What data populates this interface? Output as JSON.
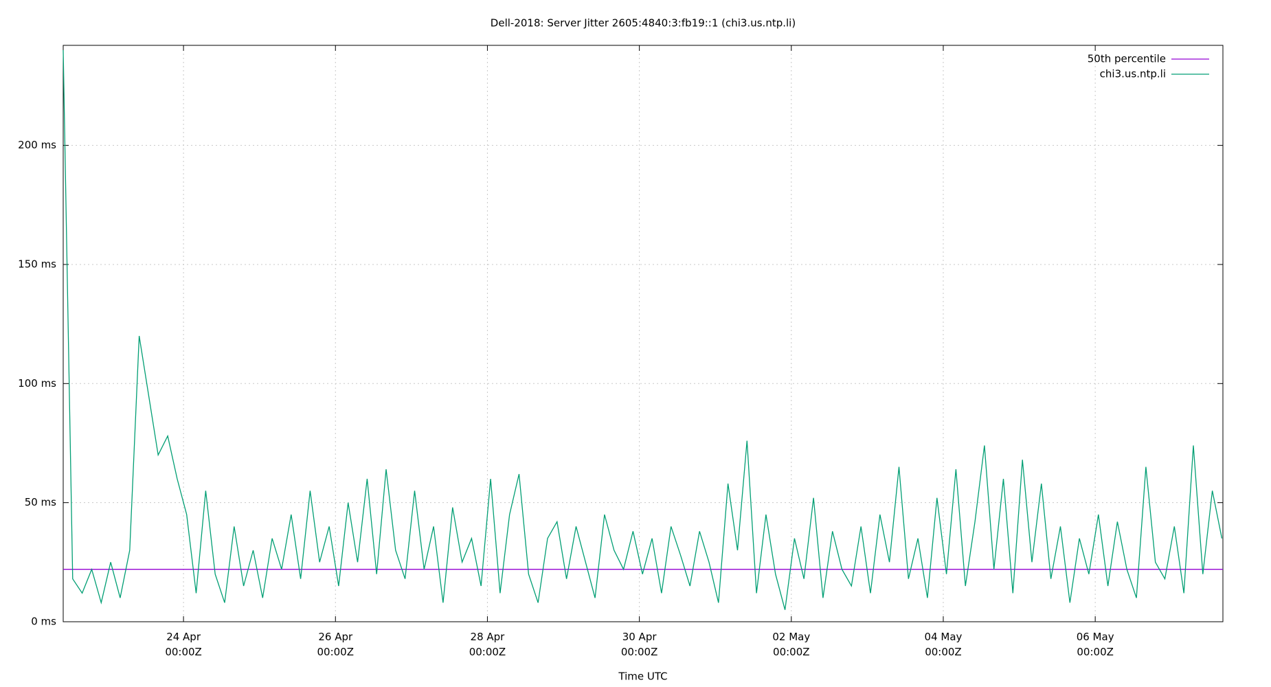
{
  "chart_data": {
    "type": "line",
    "title": "Dell-2018: Server Jitter 2605:4840:3:fb19::1 (chi3.us.ntp.li)",
    "xlabel": "Time UTC",
    "xlim": [
      "04-22T10:00",
      "05-07T16:20"
    ],
    "xticks": [
      {
        "value": "04-24T00:00",
        "label": "24 Apr\n00:00Z"
      },
      {
        "value": "04-26T00:00",
        "label": "26 Apr\n00:00Z"
      },
      {
        "value": "04-28T00:00",
        "label": "28 Apr\n00:00Z"
      },
      {
        "value": "04-30T00:00",
        "label": "30 Apr\n00:00Z"
      },
      {
        "value": "05-02T00:00",
        "label": "02 May\n00:00Z"
      },
      {
        "value": "05-04T00:00",
        "label": "04 May\n00:00Z"
      },
      {
        "value": "05-06T00:00",
        "label": "06 May\n00:00Z"
      }
    ],
    "ylim": [
      0,
      242
    ],
    "yticks": [
      {
        "value": 0,
        "label": "0 ms"
      },
      {
        "value": 50,
        "label": "50 ms"
      },
      {
        "value": 100,
        "label": "100 ms"
      },
      {
        "value": 150,
        "label": "150 ms"
      },
      {
        "value": 200,
        "label": "200 ms"
      }
    ],
    "grid": true,
    "legend": "top right",
    "series": [
      {
        "name": "50th percentile",
        "color": "#9400d3",
        "x": [
          "04-22T10:00",
          "05-07T16:20"
        ],
        "values": [
          22,
          22
        ]
      },
      {
        "name": "chi3.us.ntp.li",
        "color": "#009e73",
        "x": [
          "04-22T10:00",
          "04-22T13:00",
          "04-22T16:00",
          "04-22T19:00",
          "04-22T22:00",
          "04-23T01:00",
          "04-23T04:00",
          "04-23T07:00",
          "04-23T10:00",
          "04-23T13:00",
          "04-23T16:00",
          "04-23T19:00",
          "04-23T22:00",
          "04-24T01:00",
          "04-24T04:00",
          "04-24T07:00",
          "04-24T10:00",
          "04-24T13:00",
          "04-24T16:00",
          "04-24T19:00",
          "04-24T22:00",
          "04-25T01:00",
          "04-25T04:00",
          "04-25T07:00",
          "04-25T10:00",
          "04-25T13:00",
          "04-25T16:00",
          "04-25T19:00",
          "04-25T22:00",
          "04-26T01:00",
          "04-26T04:00",
          "04-26T07:00",
          "04-26T10:00",
          "04-26T13:00",
          "04-26T16:00",
          "04-26T19:00",
          "04-26T22:00",
          "04-27T01:00",
          "04-27T04:00",
          "04-27T07:00",
          "04-27T10:00",
          "04-27T13:00",
          "04-27T16:00",
          "04-27T19:00",
          "04-27T22:00",
          "04-28T01:00",
          "04-28T04:00",
          "04-28T07:00",
          "04-28T10:00",
          "04-28T13:00",
          "04-28T16:00",
          "04-28T19:00",
          "04-28T22:00",
          "04-29T01:00",
          "04-29T04:00",
          "04-29T07:00",
          "04-29T10:00",
          "04-29T13:00",
          "04-29T16:00",
          "04-29T19:00",
          "04-29T22:00",
          "04-30T01:00",
          "04-30T04:00",
          "04-30T07:00",
          "04-30T10:00",
          "04-30T13:00",
          "04-30T16:00",
          "04-30T19:00",
          "04-30T22:00",
          "05-01T01:00",
          "05-01T04:00",
          "05-01T07:00",
          "05-01T10:00",
          "05-01T13:00",
          "05-01T16:00",
          "05-01T19:00",
          "05-01T22:00",
          "05-02T01:00",
          "05-02T04:00",
          "05-02T07:00",
          "05-02T10:00",
          "05-02T13:00",
          "05-02T16:00",
          "05-02T19:00",
          "05-02T22:00",
          "05-03T01:00",
          "05-03T04:00",
          "05-03T07:00",
          "05-03T10:00",
          "05-03T13:00",
          "05-03T16:00",
          "05-03T19:00",
          "05-03T22:00",
          "05-04T01:00",
          "05-04T04:00",
          "05-04T07:00",
          "05-04T10:00",
          "05-04T13:00",
          "05-04T16:00",
          "05-04T19:00",
          "05-04T22:00",
          "05-05T01:00",
          "05-05T04:00",
          "05-05T07:00",
          "05-05T10:00",
          "05-05T13:00",
          "05-05T16:00",
          "05-05T19:00",
          "05-05T22:00",
          "05-06T01:00",
          "05-06T04:00",
          "05-06T07:00",
          "05-06T10:00",
          "05-06T13:00",
          "05-06T16:00",
          "05-06T19:00",
          "05-06T22:00",
          "05-07T01:00",
          "05-07T04:00",
          "05-07T07:00",
          "05-07T10:00",
          "05-07T13:00",
          "05-07T16:00"
        ],
        "values": [
          240,
          18,
          12,
          22,
          8,
          25,
          10,
          30,
          120,
          95,
          70,
          78,
          60,
          45,
          12,
          55,
          20,
          8,
          40,
          15,
          30,
          10,
          35,
          22,
          45,
          18,
          55,
          25,
          40,
          15,
          50,
          25,
          60,
          20,
          64,
          30,
          18,
          55,
          22,
          40,
          8,
          48,
          25,
          35,
          15,
          60,
          12,
          45,
          62,
          20,
          8,
          35,
          42,
          18,
          40,
          25,
          10,
          45,
          30,
          22,
          38,
          20,
          35,
          12,
          40,
          28,
          15,
          38,
          25,
          8,
          58,
          30,
          76,
          12,
          45,
          20,
          5,
          35,
          18,
          52,
          10,
          38,
          22,
          15,
          40,
          12,
          45,
          25,
          65,
          18,
          35,
          10,
          52,
          20,
          64,
          15,
          42,
          74,
          22,
          60,
          12,
          68,
          25,
          58,
          18,
          40,
          8,
          35,
          20,
          45,
          15,
          42,
          22,
          10,
          65,
          25,
          18,
          40,
          12,
          74,
          20,
          55,
          35
        ]
      }
    ]
  }
}
